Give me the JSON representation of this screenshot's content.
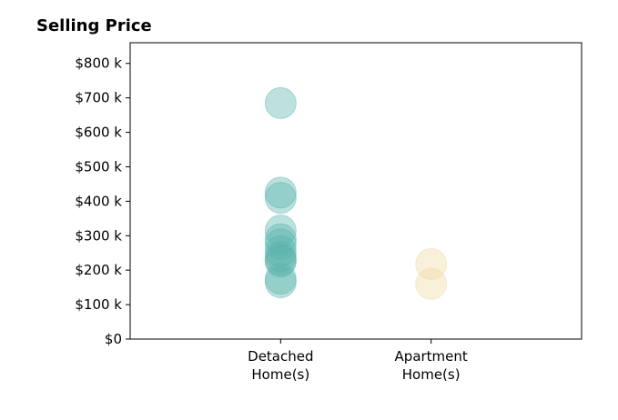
{
  "chart_data": {
    "type": "scatter",
    "title": "Selling Price",
    "xlabel": "",
    "ylabel": "",
    "categories": [
      "Detached\nHome(s)",
      "Apartment\nHome(s)"
    ],
    "y_ticks": [
      0,
      100,
      200,
      300,
      400,
      500,
      600,
      700,
      800
    ],
    "y_tick_labels": [
      "$0",
      "$100 k",
      "$200 k",
      "$300 k",
      "$400 k",
      "$500 k",
      "$600 k",
      "$700 k",
      "$800 k"
    ],
    "ylim": [
      0,
      860
    ],
    "xlim": [
      0,
      3
    ],
    "grid": false,
    "series": [
      {
        "category_index": 0,
        "color": "#5ab4ac",
        "values": [
          685,
          425,
          410,
          315,
          290,
          275,
          255,
          240,
          230,
          225,
          175,
          165
        ]
      },
      {
        "category_index": 1,
        "color": "#f0d9a0",
        "values": [
          218,
          160
        ]
      }
    ]
  }
}
